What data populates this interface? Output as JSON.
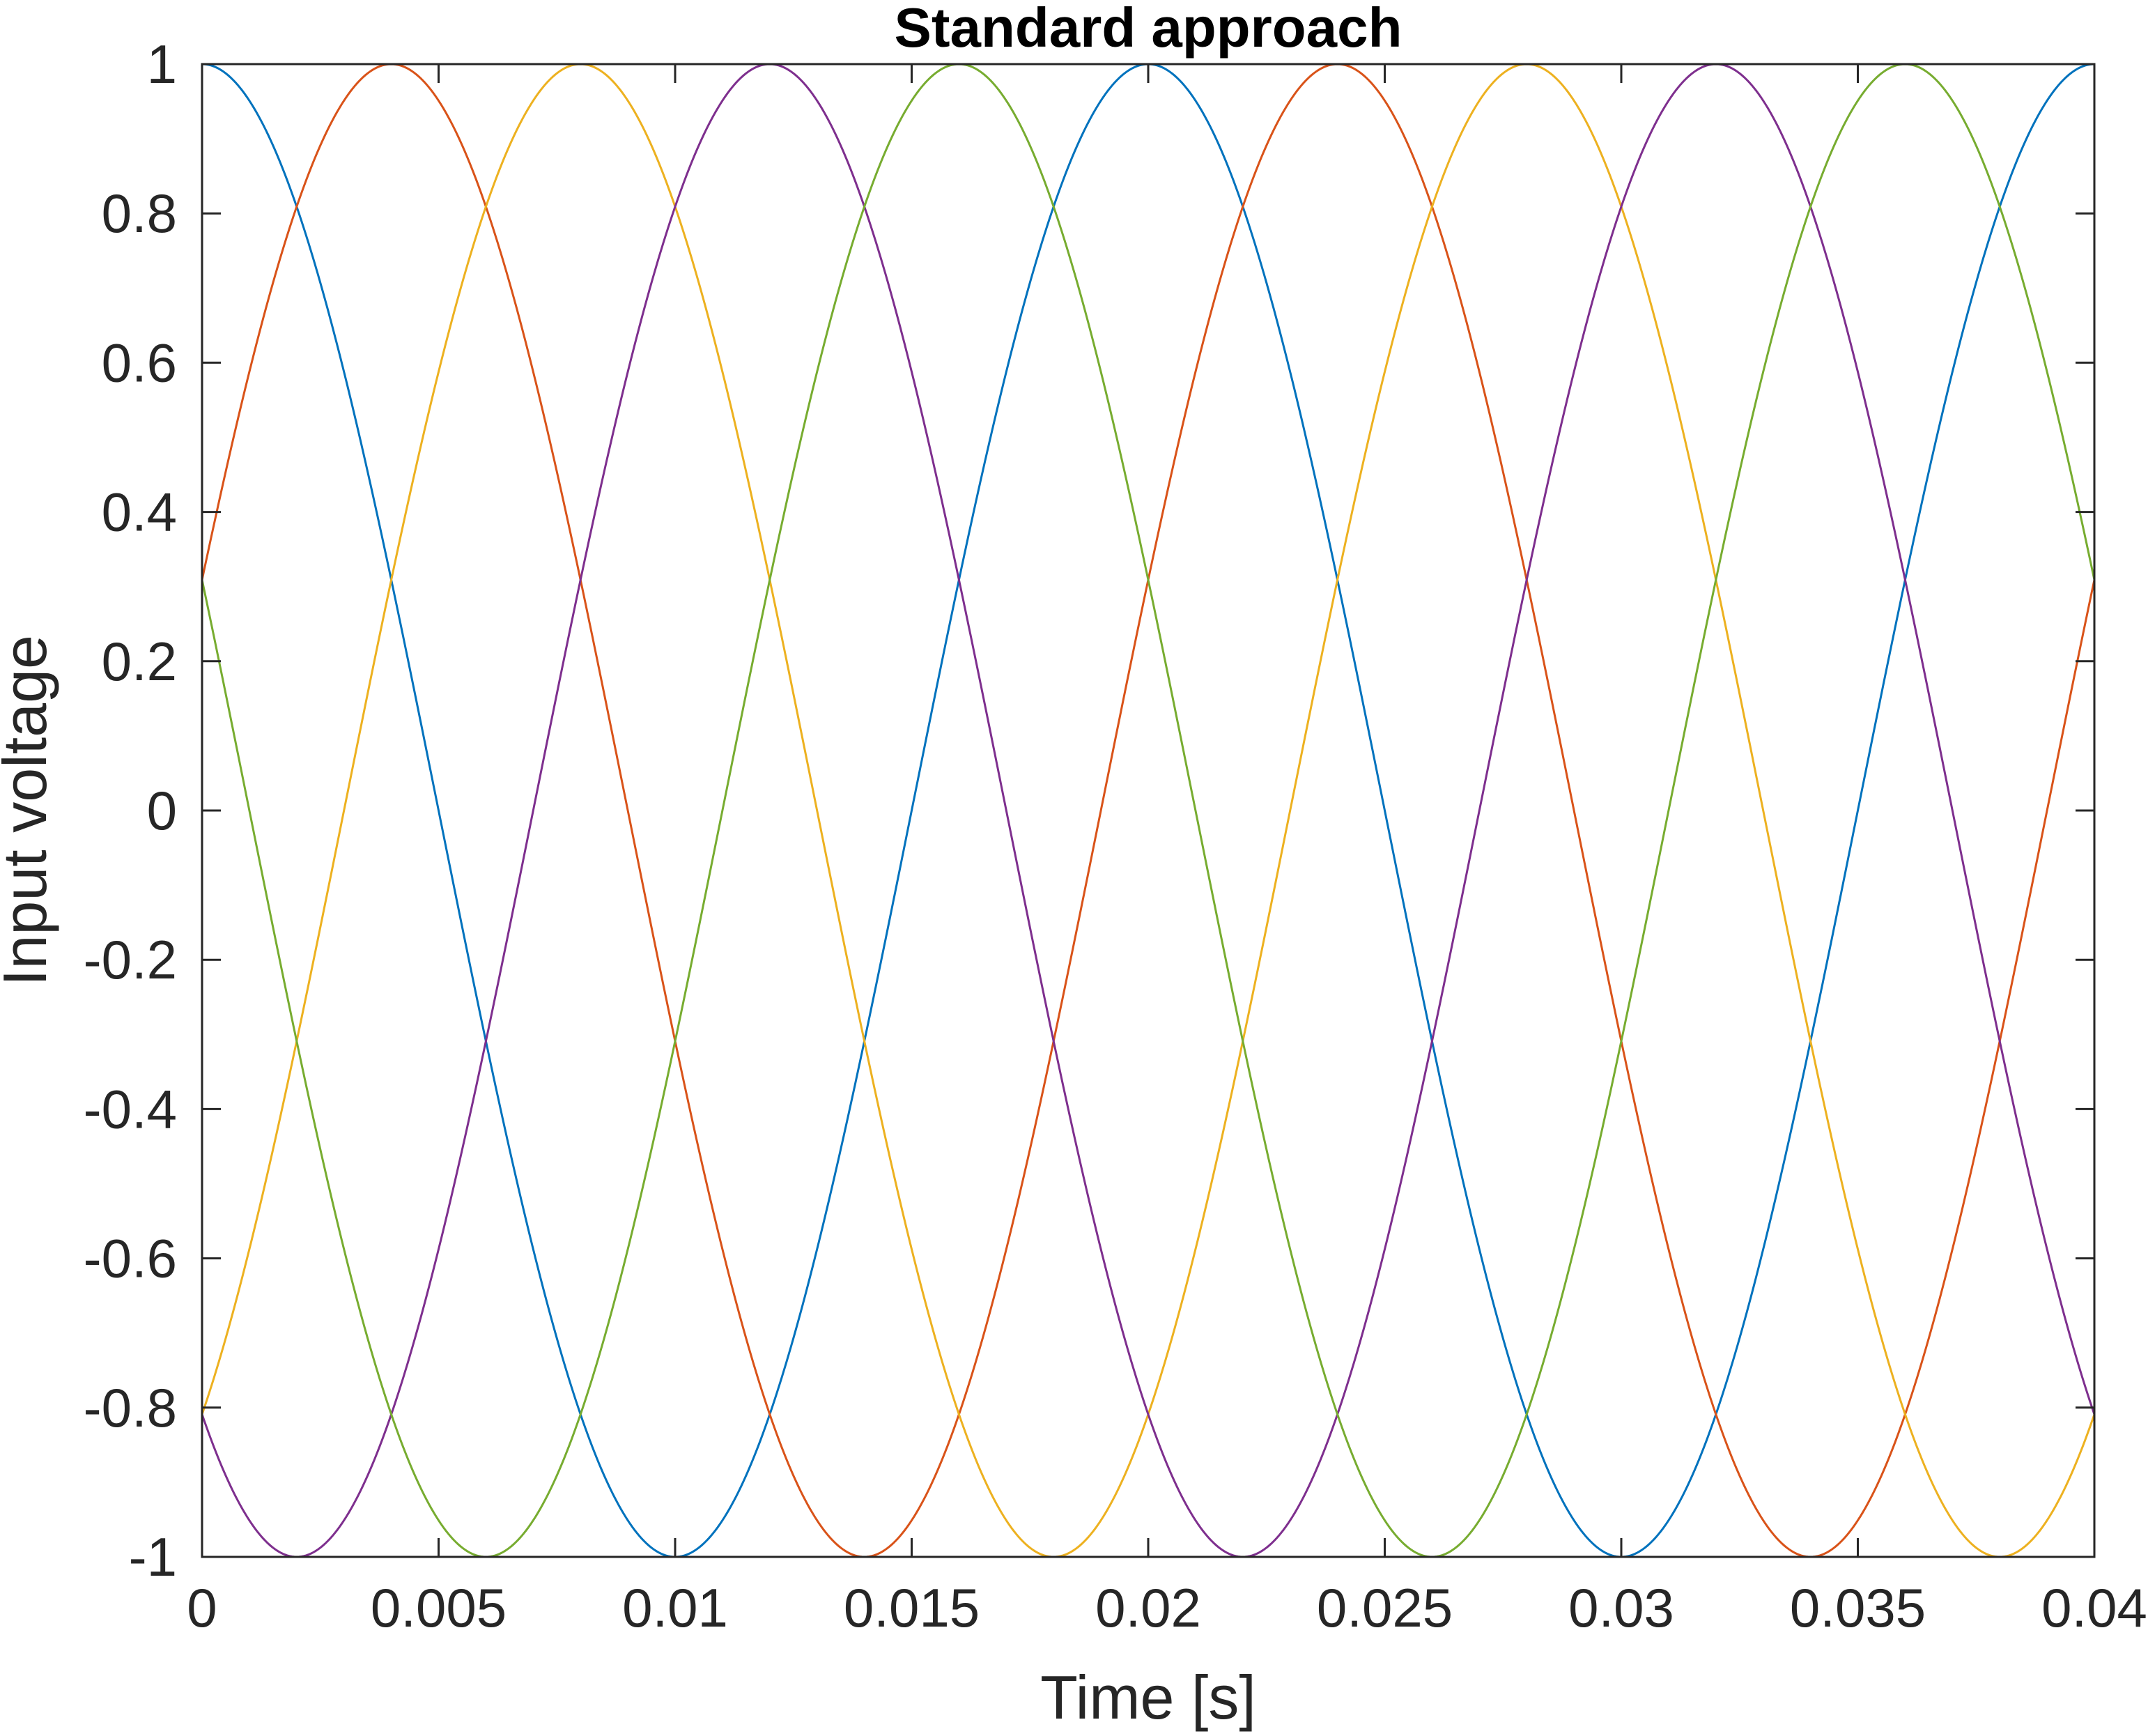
{
  "chart_data": {
    "type": "line",
    "title": "Standard approach",
    "xlabel": "Time [s]",
    "ylabel": "Input voltage",
    "xlim": [
      0,
      0.04
    ],
    "ylim": [
      -1,
      1
    ],
    "grid": false,
    "x_ticks": [
      0,
      0.005,
      0.01,
      0.015,
      0.02,
      0.025,
      0.03,
      0.035,
      0.04
    ],
    "x_tick_labels": [
      "0",
      "0.005",
      "0.01",
      "0.015",
      "0.02",
      "0.025",
      "0.03",
      "0.035",
      "0.04"
    ],
    "y_ticks": [
      1,
      0.8,
      0.6,
      0.4,
      0.2,
      0,
      -0.2,
      -0.4,
      -0.6,
      -0.8,
      -1
    ],
    "y_tick_labels": [
      "1",
      "0.8",
      "0.6",
      "0.4",
      "0.2",
      "0",
      "-0.2",
      "-0.4",
      "-0.6",
      "-0.8",
      "-1"
    ],
    "series": [
      {
        "color": "#0072BD",
        "amplitude": 1,
        "period_s": 0.02,
        "peak_times_s": [
          0,
          0.02,
          0.04
        ],
        "trough_times_s": [
          0.01,
          0.03
        ]
      },
      {
        "color": "#D95319",
        "amplitude": 1,
        "period_s": 0.02,
        "peak_times_s": [
          0.004,
          0.024
        ],
        "trough_times_s": [
          0.014,
          0.034
        ]
      },
      {
        "color": "#EDB120",
        "amplitude": 1,
        "period_s": 0.02,
        "peak_times_s": [
          0.008,
          0.028
        ],
        "trough_times_s": [
          0.018,
          0.038
        ]
      },
      {
        "color": "#7E2F8E",
        "amplitude": 1,
        "period_s": 0.02,
        "peak_times_s": [
          0.012,
          0.032
        ],
        "trough_times_s": [
          0.002,
          0.022
        ]
      },
      {
        "color": "#77AC30",
        "amplitude": 1,
        "period_s": 0.02,
        "peak_times_s": [
          0.016,
          0.036
        ],
        "trough_times_s": [
          0.006,
          0.026
        ]
      }
    ]
  }
}
